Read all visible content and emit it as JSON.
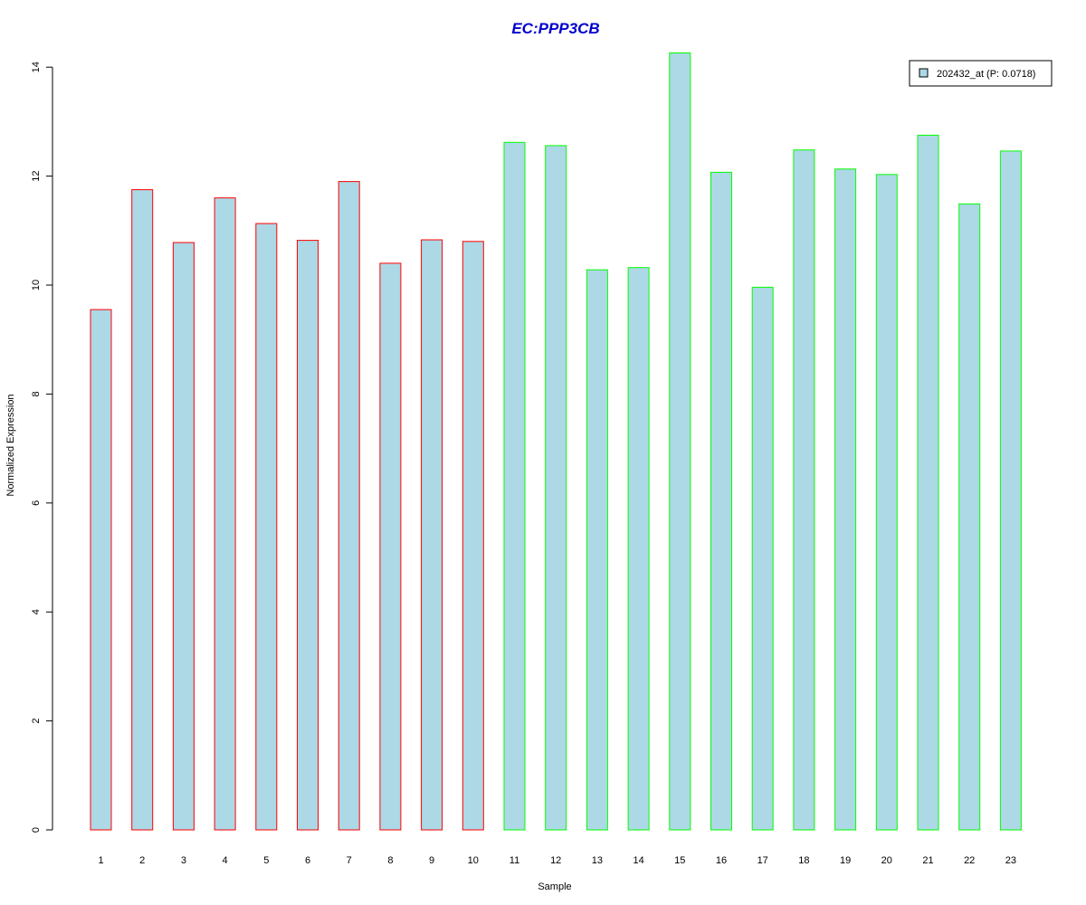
{
  "chart_data": {
    "type": "bar",
    "title": "EC:PPP3CB",
    "title_color": "#0000CD",
    "xlabel": "Sample",
    "ylabel": "Normalized Expression",
    "categories": [
      "1",
      "2",
      "3",
      "4",
      "5",
      "6",
      "7",
      "8",
      "9",
      "10",
      "11",
      "12",
      "13",
      "14",
      "15",
      "16",
      "17",
      "18",
      "19",
      "20",
      "21",
      "22",
      "23"
    ],
    "values": [
      9.55,
      11.75,
      10.78,
      11.6,
      11.13,
      10.82,
      11.9,
      10.4,
      10.83,
      10.8,
      12.62,
      12.56,
      10.28,
      10.32,
      14.26,
      12.07,
      9.96,
      12.48,
      12.13,
      12.03,
      12.75,
      11.49,
      12.46
    ],
    "groups": [
      1,
      1,
      1,
      1,
      1,
      1,
      1,
      1,
      1,
      1,
      2,
      2,
      2,
      2,
      2,
      2,
      2,
      2,
      2,
      2,
      2,
      2,
      2
    ],
    "group_colors": {
      "1": "#FF0000",
      "2": "#00FF00"
    },
    "fill_color": "#ADD8E6",
    "yticks": [
      0,
      2,
      4,
      6,
      8,
      10,
      12,
      14
    ],
    "ylim": [
      0,
      14.3
    ],
    "grid": false,
    "legend": {
      "position": "top-right",
      "entries": [
        {
          "label": "202432_at (P: 0.0718)",
          "color": "#ADD8E6"
        }
      ]
    }
  }
}
